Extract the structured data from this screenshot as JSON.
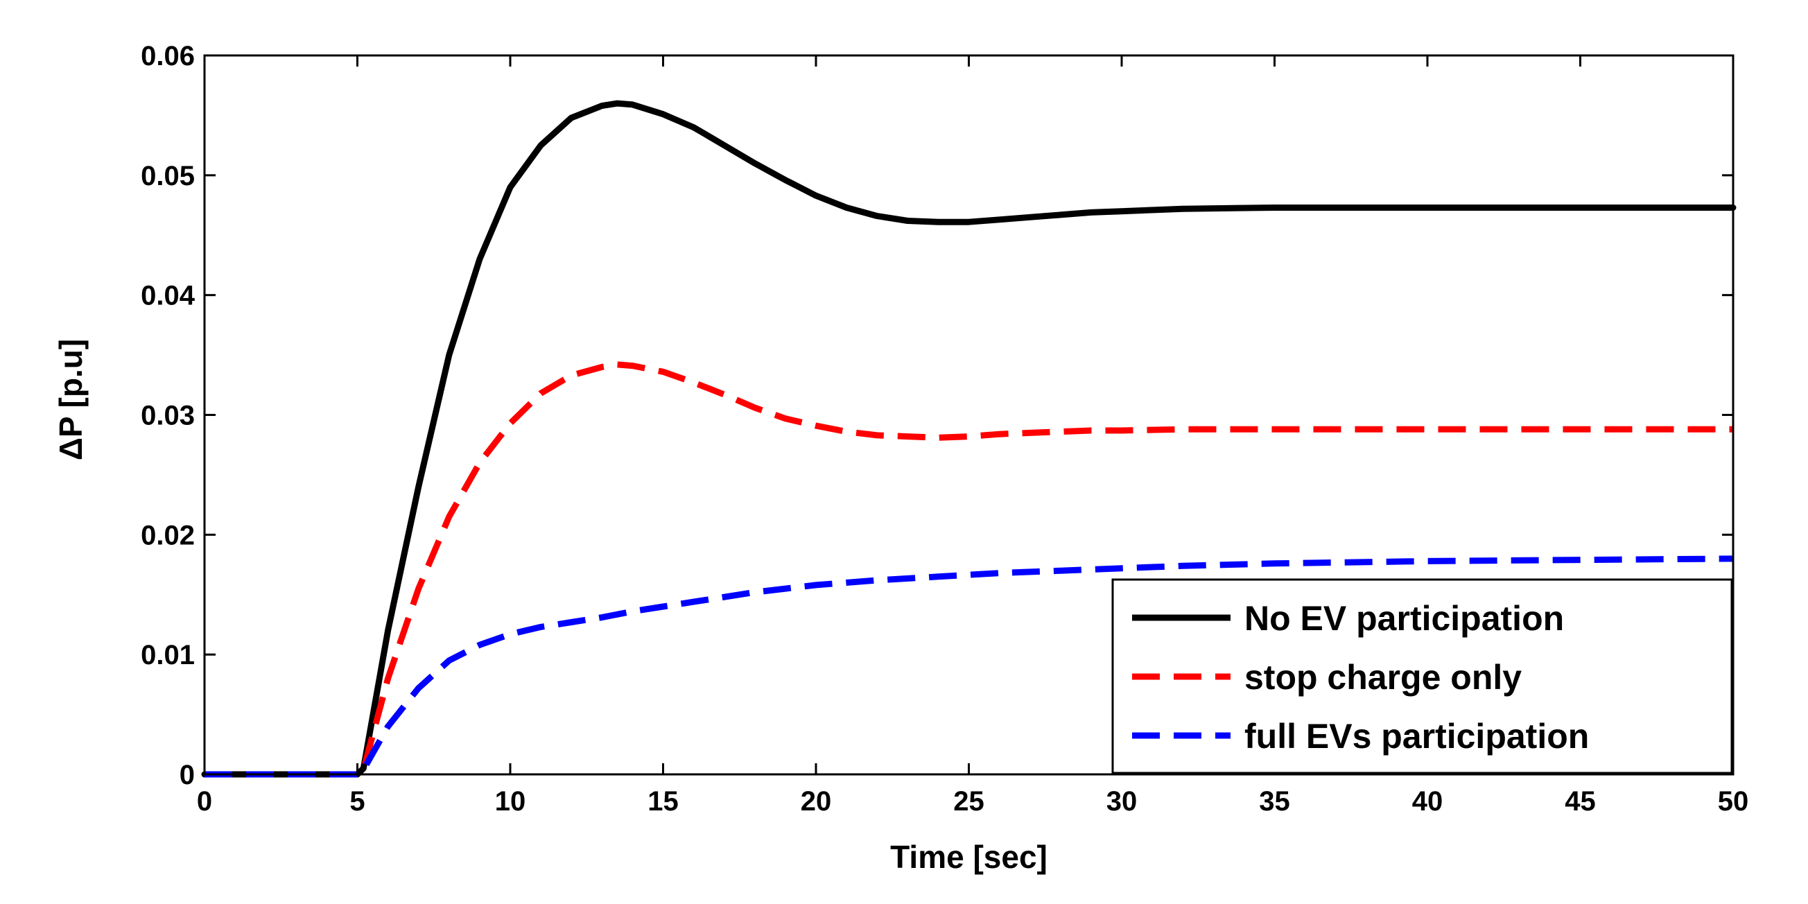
{
  "chart_data": {
    "type": "line",
    "title": "",
    "xlabel": "Time [sec]",
    "ylabel": "ΔP [p.u]",
    "xlim": [
      0,
      50
    ],
    "ylim": [
      0,
      0.06
    ],
    "xticks": [
      0,
      5,
      10,
      15,
      20,
      25,
      30,
      35,
      40,
      45,
      50
    ],
    "yticks": [
      0,
      0.01,
      0.02,
      0.03,
      0.04,
      0.05,
      0.06
    ],
    "xtick_labels": [
      "0",
      "5",
      "10",
      "15",
      "20",
      "25",
      "30",
      "35",
      "40",
      "45",
      "50"
    ],
    "ytick_labels": [
      "0",
      "0.01",
      "0.02",
      "0.03",
      "0.04",
      "0.05",
      "0.06"
    ],
    "grid": false,
    "legend_position": "bottom-right",
    "series": [
      {
        "name": "No EV participation",
        "color": "#000000",
        "style": "solid",
        "x": [
          0,
          5,
          5.2,
          6,
          7,
          8,
          9,
          10,
          11,
          12,
          13,
          13.5,
          14,
          15,
          16,
          17,
          18,
          19,
          20,
          21,
          22,
          23,
          24,
          25,
          26,
          27,
          28,
          29,
          30,
          32,
          35,
          40,
          45,
          50
        ],
        "y": [
          0,
          0,
          0.0005,
          0.012,
          0.024,
          0.035,
          0.043,
          0.049,
          0.0525,
          0.0548,
          0.0558,
          0.056,
          0.0559,
          0.0551,
          0.054,
          0.0525,
          0.051,
          0.0496,
          0.0483,
          0.0473,
          0.0466,
          0.0462,
          0.0461,
          0.0461,
          0.0463,
          0.0465,
          0.0467,
          0.0469,
          0.047,
          0.0472,
          0.0473,
          0.0473,
          0.0473,
          0.0473
        ]
      },
      {
        "name": "stop charge only",
        "color": "#ff0000",
        "style": "dashed",
        "x": [
          0,
          5,
          5.2,
          6,
          7,
          8,
          9,
          10,
          11,
          12,
          13,
          13.5,
          14,
          15,
          16,
          17,
          18,
          19,
          20,
          21,
          22,
          23,
          24,
          25,
          26,
          27,
          28,
          29,
          30,
          32,
          35,
          40,
          45,
          50
        ],
        "y": [
          0,
          0,
          0.0004,
          0.008,
          0.0155,
          0.0215,
          0.026,
          0.0293,
          0.0318,
          0.0333,
          0.034,
          0.0342,
          0.0341,
          0.0336,
          0.0327,
          0.0317,
          0.0306,
          0.0297,
          0.0291,
          0.0286,
          0.0283,
          0.0282,
          0.0281,
          0.0282,
          0.0284,
          0.0285,
          0.0286,
          0.0287,
          0.0287,
          0.0288,
          0.0288,
          0.0288,
          0.0288,
          0.0288
        ]
      },
      {
        "name": "full EVs participation",
        "color": "#0000ff",
        "style": "dashed",
        "x": [
          0,
          5,
          5.2,
          6,
          7,
          8,
          9,
          10,
          11,
          12,
          13,
          14,
          15,
          16,
          17,
          18,
          19,
          20,
          22,
          24,
          26,
          28,
          30,
          32,
          35,
          40,
          45,
          50
        ],
        "y": [
          0,
          0,
          0.0004,
          0.004,
          0.0072,
          0.0095,
          0.0108,
          0.0117,
          0.0123,
          0.0127,
          0.0131,
          0.0136,
          0.014,
          0.0144,
          0.0148,
          0.0152,
          0.0155,
          0.0158,
          0.0162,
          0.0165,
          0.0168,
          0.017,
          0.0172,
          0.0174,
          0.0176,
          0.0178,
          0.0179,
          0.018
        ]
      }
    ]
  }
}
